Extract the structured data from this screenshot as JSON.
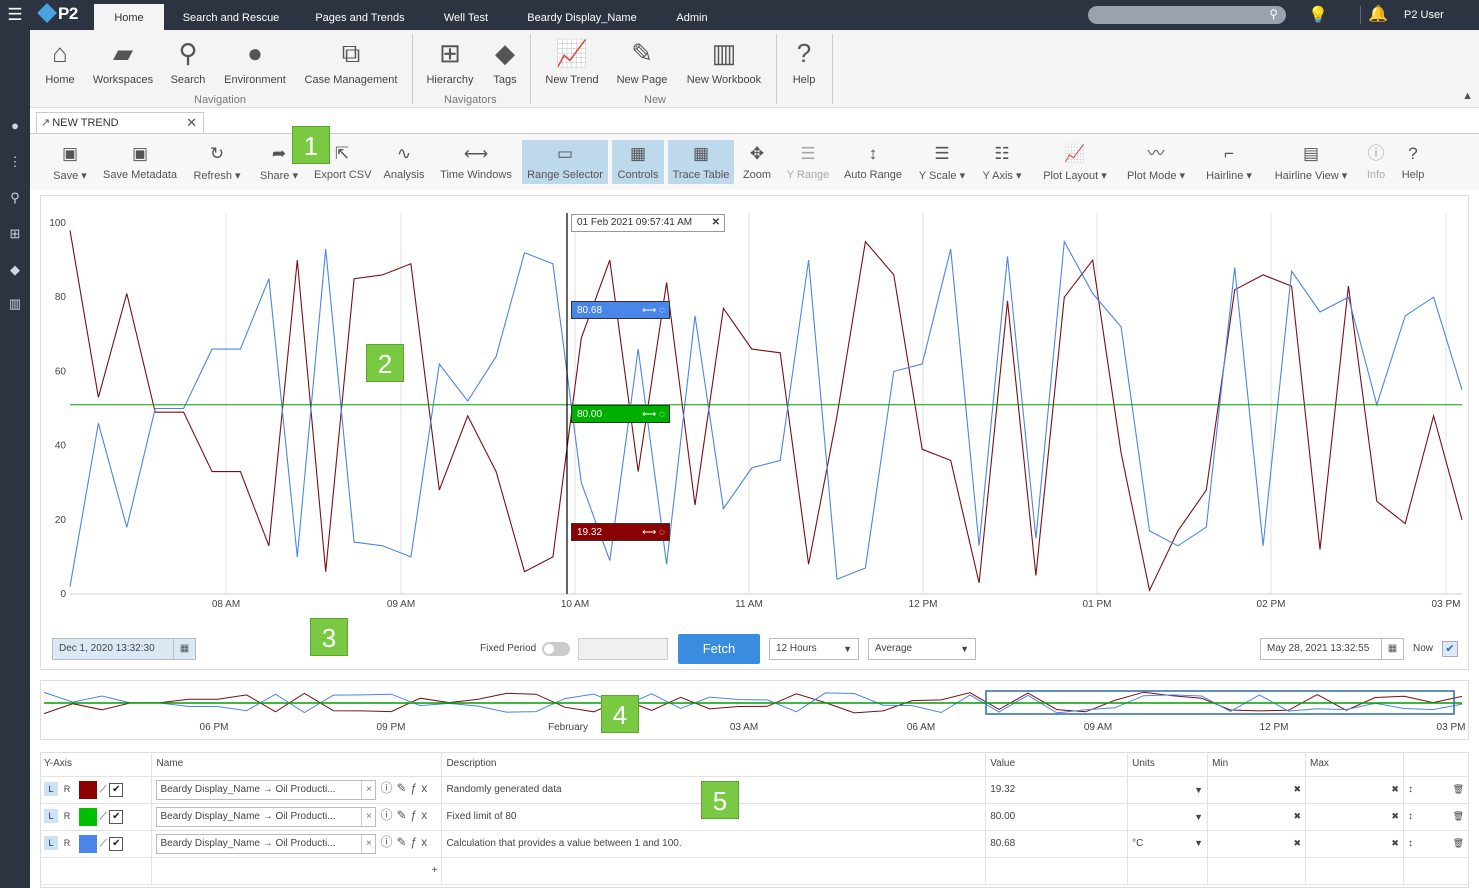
{
  "app": {
    "logo": "P2",
    "user": "P2 User"
  },
  "topnav": [
    "Home",
    "Search and Rescue",
    "Pages and Trends",
    "Well Test",
    "Beardy Display_Name",
    "Admin"
  ],
  "ribbon": {
    "buttons": [
      {
        "label": "Home",
        "icon": "home-icon"
      },
      {
        "label": "Workspaces",
        "icon": "folder-icon"
      },
      {
        "label": "Search",
        "icon": "search-icon"
      },
      {
        "label": "Environment",
        "icon": "user-icon"
      },
      {
        "label": "Case Management",
        "icon": "case-icon"
      },
      {
        "label": "Hierarchy",
        "icon": "hierarchy-icon"
      },
      {
        "label": "Tags",
        "icon": "tag-icon"
      },
      {
        "label": "New Trend",
        "icon": "trend-icon"
      },
      {
        "label": "New Page",
        "icon": "edit-icon"
      },
      {
        "label": "New Workbook",
        "icon": "book-icon"
      },
      {
        "label": "Help",
        "icon": "help-icon"
      }
    ],
    "groups": [
      "Navigation",
      "Navigators",
      "New"
    ]
  },
  "doc_tab": {
    "label": "NEW TREND"
  },
  "toolbar": [
    "Save",
    "Save Metadata",
    "Refresh",
    "Share",
    "Export CSV",
    "Analysis",
    "Time Windows",
    "Range Selector",
    "Controls",
    "Trace Table",
    "Zoom",
    "Y Range",
    "Auto Range",
    "Y Scale",
    "Y Axis",
    "Plot Layout",
    "Plot Mode",
    "Hairline",
    "Hairline View",
    "Info",
    "Help"
  ],
  "badges": [
    "1",
    "2",
    "3",
    "4",
    "5"
  ],
  "chart_data": {
    "type": "line",
    "ylim": [
      0,
      100
    ],
    "yticks": [
      "0",
      "20",
      "40",
      "60",
      "80",
      "100"
    ],
    "xticks": [
      "08 AM",
      "09 AM",
      "10 AM",
      "11 AM",
      "12 PM",
      "01 PM",
      "02 PM",
      "03 PM"
    ],
    "hairline": {
      "time": "01 Feb 2021 09:57:41 AM",
      "labels": [
        "80.68",
        "80.00",
        "19.32"
      ]
    },
    "series": [
      {
        "color": "#7a0f14",
        "values": [
          98,
          53,
          81,
          49,
          49,
          33,
          33,
          13,
          90,
          6,
          85,
          86,
          89,
          28,
          48,
          33,
          6,
          10,
          69,
          90,
          33,
          84,
          24,
          77,
          66,
          65,
          8,
          48,
          95,
          86,
          39,
          36,
          3,
          79,
          5,
          80,
          90,
          38,
          1,
          17,
          28,
          82,
          86,
          83,
          12,
          83,
          25,
          19,
          48,
          20
        ]
      },
      {
        "color": "#4a86e8",
        "values": [
          2,
          46,
          18,
          50,
          50,
          66,
          66,
          85,
          10,
          93,
          14,
          13,
          10,
          62,
          52,
          64,
          92,
          89,
          30,
          9,
          66,
          8,
          75,
          23,
          34,
          36,
          90,
          4,
          7,
          60,
          62,
          93,
          13,
          91,
          15,
          95,
          81,
          72,
          17,
          13,
          18,
          88,
          13,
          87,
          76,
          80,
          51,
          75,
          80,
          55
        ]
      },
      {
        "color": "#00a000",
        "values": [
          51
        ]
      }
    ]
  },
  "controls": {
    "start": "Dec 1, 2020 13:32:30",
    "fixed_period": "Fixed Period",
    "fetch": "Fetch",
    "duration": "12 Hours",
    "mode": "Average",
    "end": "May 28, 2021 13:32:55",
    "now": "Now"
  },
  "navigator": {
    "ticks": [
      "06 PM",
      "09 PM",
      "February",
      "03 AM",
      "06 AM",
      "09 AM",
      "12 PM",
      "03 PM"
    ]
  },
  "grid": {
    "headers": [
      "Y-Axis",
      "Name",
      "Description",
      "Value",
      "Units",
      "Min",
      "Max"
    ],
    "rows": [
      {
        "color": "#8b0000",
        "name": "Beardy Display_Name → Oil Producti...",
        "description": "Randomly generated data",
        "value": "19.32",
        "units": ""
      },
      {
        "color": "#00c000",
        "name": "Beardy Display_Name → Oil Producti...",
        "description": "Fixed limit of 80",
        "value": "80.00",
        "units": ""
      },
      {
        "color": "#4a86e8",
        "name": "Beardy Display_Name → Oil Producti...",
        "description": "Calculation that provides a value between 1 and 100.",
        "value": "80.68",
        "units": "°C"
      }
    ]
  }
}
